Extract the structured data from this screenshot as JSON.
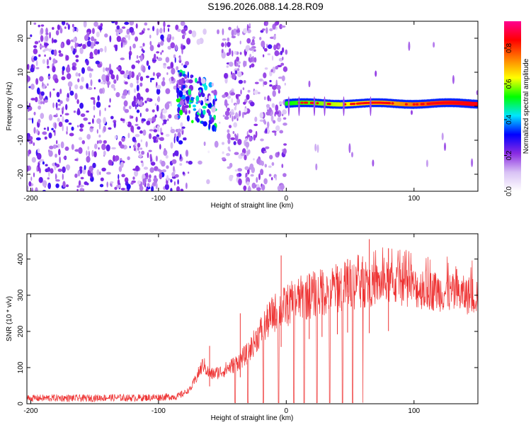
{
  "title": "S196.2026.088.14.28.R09",
  "chart_data": [
    {
      "type": "heatmap",
      "xlabel": "Height of straight line (km)",
      "ylabel": "Frequency (Hz)",
      "xlim": [
        -203,
        150
      ],
      "ylim": [
        -25,
        25
      ],
      "xticks": [
        -200,
        -100,
        0,
        100
      ],
      "yticks": [
        -20,
        -10,
        0,
        10,
        20
      ],
      "colorbar": {
        "label": "Normalized spectral amplitude",
        "range": [
          0,
          0.95
        ],
        "ticks": [
          0.0,
          0.2,
          0.4,
          0.6,
          0.8
        ],
        "tick_labels": [
          "0.0",
          "0.2",
          "0.4",
          "0.6",
          "0.8"
        ],
        "colors": [
          "#ffffff",
          "#d9c2f5",
          "#8a2be2",
          "#0000ff",
          "#00e5ff",
          "#00ff00",
          "#ffff00",
          "#ff8000",
          "#ff0000",
          "#ff0090"
        ]
      },
      "regions": [
        {
          "name": "noise",
          "x_range": [
            -203,
            -75
          ],
          "amplitude": 0.1
        },
        {
          "name": "signal-onset",
          "x_range": [
            -85,
            -55
          ],
          "freq_hz": 4,
          "amplitude": 0.25
        },
        {
          "name": "gap",
          "x_range": [
            -75,
            -50
          ],
          "amplitude": 0.03
        },
        {
          "name": "noise-2",
          "x_range": [
            -50,
            0
          ],
          "amplitude": 0.08
        },
        {
          "name": "carrier",
          "x_range": [
            0,
            150
          ],
          "freq_hz": 0.8,
          "amplitude": 0.9
        }
      ]
    },
    {
      "type": "line",
      "xlabel": "Height of straight line (km)",
      "ylabel": "SNR (10 * v/v)",
      "xlim": [
        -203,
        150
      ],
      "ylim": [
        0,
        470
      ],
      "xticks": [
        -200,
        -100,
        0,
        100
      ],
      "yticks": [
        0,
        100,
        200,
        300,
        400
      ],
      "color": "#ee3333",
      "series": [
        {
          "name": "SNR",
          "x": [
            -203,
            -180,
            -160,
            -140,
            -120,
            -100,
            -85,
            -75,
            -65,
            -60,
            -50,
            -40,
            -30,
            -20,
            -10,
            0,
            10,
            20,
            30,
            40,
            50,
            55,
            60,
            70,
            80,
            90,
            100,
            110,
            120,
            130,
            140,
            150
          ],
          "y": [
            15,
            16,
            15,
            17,
            16,
            18,
            20,
            40,
            110,
            80,
            90,
            110,
            140,
            200,
            250,
            270,
            290,
            300,
            310,
            320,
            330,
            330,
            320,
            330,
            335,
            330,
            320,
            315,
            310,
            305,
            300,
            300
          ]
        }
      ],
      "spikes": [
        {
          "x": -60,
          "y": 160
        },
        {
          "x": -36,
          "y": 250
        },
        {
          "x": -4,
          "y": 410
        },
        {
          "x": 18,
          "y": 360
        },
        {
          "x": 28,
          "y": 370
        },
        {
          "x": 40,
          "y": 380
        },
        {
          "x": 48,
          "y": 400
        },
        {
          "x": 65,
          "y": 455
        },
        {
          "x": 80,
          "y": 430
        }
      ]
    }
  ]
}
